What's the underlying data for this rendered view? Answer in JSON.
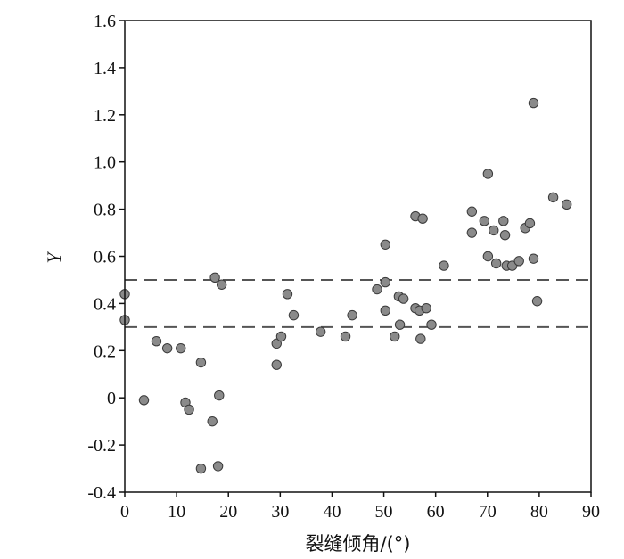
{
  "chart_data": {
    "type": "scatter",
    "xlabel": "裂缝倾角/(°)",
    "ylabel": "Y",
    "xlim": [
      0,
      90
    ],
    "ylim": [
      -0.4,
      1.6
    ],
    "x_ticks": [
      "0",
      "10",
      "20",
      "30",
      "40",
      "50",
      "60",
      "70",
      "80",
      "90"
    ],
    "y_ticks": [
      "-0.4",
      "-0.2",
      "0",
      "0.2",
      "0.4",
      "0.6",
      "0.8",
      "1.0",
      "1.2",
      "1.4",
      "1.6"
    ],
    "grid": false,
    "reference_lines": [
      {
        "axis": "y",
        "value": 0.5,
        "style": "dashed"
      },
      {
        "axis": "y",
        "value": 0.3,
        "style": "dashed"
      }
    ],
    "marker_color": "#8a8a8a",
    "series": [
      {
        "points": [
          [
            0,
            0.44
          ],
          [
            0,
            0.33
          ],
          [
            3.7,
            -0.01
          ],
          [
            6.1,
            0.24
          ],
          [
            8.2,
            0.21
          ],
          [
            10.8,
            0.21
          ],
          [
            11.7,
            -0.02
          ],
          [
            12.4,
            -0.05
          ],
          [
            14.7,
            0.15
          ],
          [
            14.7,
            -0.3
          ],
          [
            16.9,
            -0.1
          ],
          [
            17.4,
            0.51
          ],
          [
            18.0,
            -0.29
          ],
          [
            18.2,
            0.01
          ],
          [
            18.7,
            0.48
          ],
          [
            29.3,
            0.14
          ],
          [
            29.3,
            0.23
          ],
          [
            30.2,
            0.26
          ],
          [
            31.4,
            0.44
          ],
          [
            32.6,
            0.35
          ],
          [
            37.8,
            0.28
          ],
          [
            42.6,
            0.26
          ],
          [
            43.9,
            0.35
          ],
          [
            48.7,
            0.46
          ],
          [
            50.3,
            0.65
          ],
          [
            50.3,
            0.49
          ],
          [
            50.3,
            0.37
          ],
          [
            52.1,
            0.26
          ],
          [
            52.9,
            0.43
          ],
          [
            53.1,
            0.31
          ],
          [
            53.8,
            0.42
          ],
          [
            56.1,
            0.77
          ],
          [
            56.1,
            0.38
          ],
          [
            56.9,
            0.37
          ],
          [
            57.1,
            0.25
          ],
          [
            57.5,
            0.76
          ],
          [
            58.2,
            0.38
          ],
          [
            59.2,
            0.31
          ],
          [
            61.6,
            0.56
          ],
          [
            67.0,
            0.79
          ],
          [
            67.0,
            0.7
          ],
          [
            69.4,
            0.75
          ],
          [
            70.1,
            0.95
          ],
          [
            70.1,
            0.6
          ],
          [
            71.2,
            0.71
          ],
          [
            71.7,
            0.57
          ],
          [
            73.1,
            0.75
          ],
          [
            73.4,
            0.69
          ],
          [
            73.7,
            0.56
          ],
          [
            74.8,
            0.56
          ],
          [
            76.1,
            0.58
          ],
          [
            77.3,
            0.72
          ],
          [
            78.2,
            0.74
          ],
          [
            78.9,
            1.25
          ],
          [
            78.9,
            0.59
          ],
          [
            79.6,
            0.41
          ],
          [
            82.7,
            0.85
          ],
          [
            85.3,
            0.82
          ]
        ]
      }
    ]
  }
}
